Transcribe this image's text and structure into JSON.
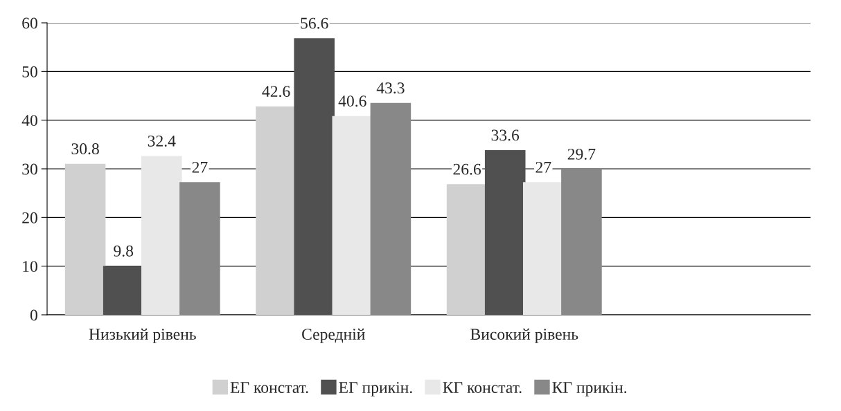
{
  "chart_data": {
    "type": "bar",
    "categories": [
      "Низький рівень",
      "Середній",
      "Високий рівень",
      null
    ],
    "series": [
      {
        "name": "ЕГ констат.",
        "color": "#d0d0d0",
        "values": [
          30.8,
          42.6,
          26.6,
          null
        ]
      },
      {
        "name": "ЕГ прикін.",
        "color": "#505050",
        "values": [
          9.8,
          56.6,
          33.6,
          null
        ]
      },
      {
        "name": "КГ констат.",
        "color": "#e8e8e8",
        "values": [
          32.4,
          40.6,
          27,
          null
        ]
      },
      {
        "name": "КГ прикін.",
        "color": "#888888",
        "values": [
          27,
          43.3,
          29.7,
          null
        ]
      }
    ],
    "ylim": [
      0,
      60
    ],
    "yticks": [
      0,
      10,
      20,
      30,
      40,
      50,
      60
    ],
    "grid": "y",
    "legend": "bottom",
    "data_labels": true
  }
}
